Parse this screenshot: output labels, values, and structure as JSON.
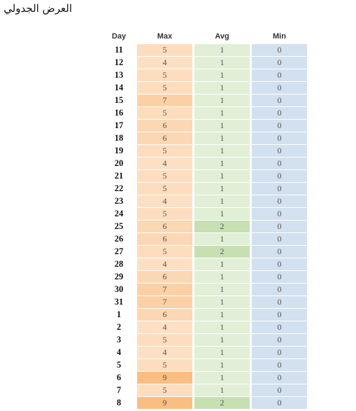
{
  "title": "العرض الجدولي",
  "table": {
    "header": [
      "Day",
      "Max",
      "Avg",
      "Min"
    ],
    "rows": [
      [
        11,
        5,
        1,
        0
      ],
      [
        12,
        4,
        1,
        0
      ],
      [
        13,
        5,
        1,
        0
      ],
      [
        14,
        5,
        1,
        0
      ],
      [
        15,
        7,
        1,
        0
      ],
      [
        16,
        5,
        1,
        0
      ],
      [
        17,
        6,
        1,
        0
      ],
      [
        18,
        6,
        1,
        0
      ],
      [
        19,
        5,
        1,
        0
      ],
      [
        20,
        4,
        1,
        0
      ],
      [
        21,
        5,
        1,
        0
      ],
      [
        22,
        5,
        1,
        0
      ],
      [
        23,
        4,
        1,
        0
      ],
      [
        24,
        5,
        1,
        0
      ],
      [
        25,
        6,
        2,
        0
      ],
      [
        26,
        6,
        1,
        0
      ],
      [
        27,
        5,
        2,
        0
      ],
      [
        28,
        4,
        1,
        0
      ],
      [
        29,
        6,
        1,
        0
      ],
      [
        30,
        7,
        1,
        0
      ],
      [
        31,
        7,
        1,
        0
      ],
      [
        1,
        6,
        1,
        0
      ],
      [
        2,
        4,
        1,
        0
      ],
      [
        3,
        5,
        1,
        0
      ],
      [
        4,
        4,
        1,
        0
      ],
      [
        5,
        5,
        1,
        0
      ],
      [
        6,
        9,
        1,
        0
      ],
      [
        7,
        5,
        1,
        0
      ],
      [
        8,
        9,
        2,
        0
      ]
    ]
  }
}
